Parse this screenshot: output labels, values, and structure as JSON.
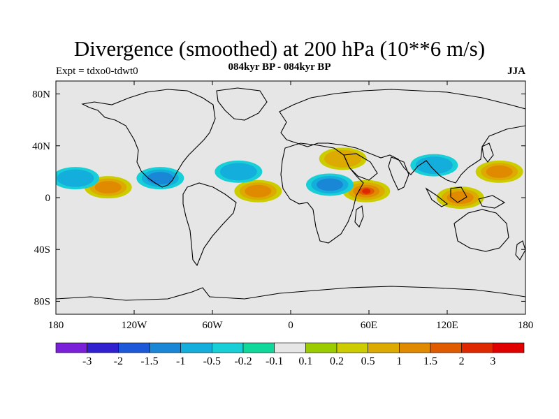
{
  "title": "Divergence (smoothed) at 200 hPa (10**6 m/s)",
  "subtitle": "084kyr BP - 084kyr BP",
  "experiment": "Expt = tdxo0-tdwt0",
  "season": "JJA",
  "axes": {
    "lat_ticks": [
      "80N",
      "40N",
      "0",
      "40S",
      "80S"
    ],
    "lon_ticks": [
      "180",
      "120W",
      "60W",
      "0",
      "60E",
      "120E",
      "180"
    ]
  },
  "colorbar": {
    "colors": [
      "#7a20d8",
      "#3020d0",
      "#1d58d8",
      "#1a86d6",
      "#14aedc",
      "#18cfd8",
      "#10d79a",
      "#e6e6e6",
      "#9acc00",
      "#cccc00",
      "#dcaa00",
      "#e08a00",
      "#e05a00",
      "#e02800",
      "#e00000"
    ],
    "labels": [
      "-3",
      "-2",
      "-1.5",
      "-1",
      "-0.5",
      "-0.2",
      "-0.1",
      "0.1",
      "0.2",
      "0.5",
      "1",
      "1.5",
      "2",
      "3"
    ]
  },
  "chart_data": {
    "type": "heatmap",
    "title": "Divergence (smoothed) at 200 hPa (10**6 m/s)",
    "subtitle": "084kyr BP - 084kyr BP",
    "projection": "cylindrical equidistant",
    "lon_range": [
      -180,
      180
    ],
    "lat_range": [
      -90,
      90
    ],
    "contour_levels": [
      -3,
      -2,
      -1.5,
      -1,
      -0.5,
      -0.2,
      -0.1,
      0.1,
      0.2,
      0.5,
      1,
      1.5,
      2,
      3
    ],
    "features": [
      {
        "lon": 58,
        "lat": 5,
        "value": 2
      },
      {
        "lon": 130,
        "lat": 0,
        "value": 1
      },
      {
        "lon": 160,
        "lat": 20,
        "value": 1
      },
      {
        "lon": -140,
        "lat": 8,
        "value": 1
      },
      {
        "lon": -25,
        "lat": 5,
        "value": 1
      },
      {
        "lon": -100,
        "lat": 15,
        "value": -1
      },
      {
        "lon": 30,
        "lat": 10,
        "value": -1
      },
      {
        "lon": 110,
        "lat": 25,
        "value": -0.5
      },
      {
        "lon": -165,
        "lat": 15,
        "value": -0.5
      },
      {
        "lon": -40,
        "lat": 20,
        "value": -0.5
      },
      {
        "lon": 40,
        "lat": 30,
        "value": 0.5
      }
    ]
  }
}
